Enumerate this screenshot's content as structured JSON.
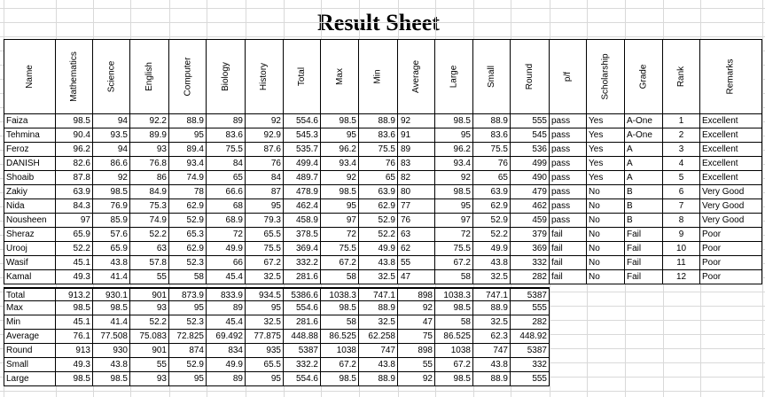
{
  "title": "Result Sheet",
  "headers": [
    "Name",
    "Mathematics",
    "Science",
    "English",
    "Computer",
    "Biology",
    "History",
    "Total",
    "Max",
    "Min",
    "Average",
    "Large",
    "Small",
    "Round",
    "p/f",
    "Scholarship",
    "Grade",
    "Rank",
    "Remarks"
  ],
  "students": [
    [
      "Faiza",
      "98.5",
      "94",
      "92.2",
      "88.9",
      "89",
      "92",
      "554.6",
      "98.5",
      "88.9",
      "92",
      "98.5",
      "88.9",
      "555",
      "pass",
      "Yes",
      "A-One",
      "1",
      "Excellent"
    ],
    [
      "Tehmina",
      "90.4",
      "93.5",
      "89.9",
      "95",
      "83.6",
      "92.9",
      "545.3",
      "95",
      "83.6",
      "91",
      "95",
      "83.6",
      "545",
      "pass",
      "Yes",
      "A-One",
      "2",
      "Excellent"
    ],
    [
      "Feroz",
      "96.2",
      "94",
      "93",
      "89.4",
      "75.5",
      "87.6",
      "535.7",
      "96.2",
      "75.5",
      "89",
      "96.2",
      "75.5",
      "536",
      "pass",
      "Yes",
      "A",
      "3",
      "Excellent"
    ],
    [
      "DANISH",
      "82.6",
      "86.6",
      "76.8",
      "93.4",
      "84",
      "76",
      "499.4",
      "93.4",
      "76",
      "83",
      "93.4",
      "76",
      "499",
      "pass",
      "Yes",
      "A",
      "4",
      "Excellent"
    ],
    [
      "Shoaib",
      "87.8",
      "92",
      "86",
      "74.9",
      "65",
      "84",
      "489.7",
      "92",
      "65",
      "82",
      "92",
      "65",
      "490",
      "pass",
      "Yes",
      "A",
      "5",
      "Excellent"
    ],
    [
      "Zakiy",
      "63.9",
      "98.5",
      "84.9",
      "78",
      "66.6",
      "87",
      "478.9",
      "98.5",
      "63.9",
      "80",
      "98.5",
      "63.9",
      "479",
      "pass",
      "No",
      "B",
      "6",
      "Very Good"
    ],
    [
      "Nida",
      "84.3",
      "76.9",
      "75.3",
      "62.9",
      "68",
      "95",
      "462.4",
      "95",
      "62.9",
      "77",
      "95",
      "62.9",
      "462",
      "pass",
      "No",
      "B",
      "7",
      "Very Good"
    ],
    [
      "Nousheen",
      "97",
      "85.9",
      "74.9",
      "52.9",
      "68.9",
      "79.3",
      "458.9",
      "97",
      "52.9",
      "76",
      "97",
      "52.9",
      "459",
      "pass",
      "No",
      "B",
      "8",
      "Very Good"
    ],
    [
      "Sheraz",
      "65.9",
      "57.6",
      "52.2",
      "65.3",
      "72",
      "65.5",
      "378.5",
      "72",
      "52.2",
      "63",
      "72",
      "52.2",
      "379",
      "fail",
      "No",
      "Fail",
      "9",
      "Poor"
    ],
    [
      "Urooj",
      "52.2",
      "65.9",
      "63",
      "62.9",
      "49.9",
      "75.5",
      "369.4",
      "75.5",
      "49.9",
      "62",
      "75.5",
      "49.9",
      "369",
      "fail",
      "No",
      "Fail",
      "10",
      "Poor"
    ],
    [
      "Wasif",
      "45.1",
      "43.8",
      "57.8",
      "52.3",
      "66",
      "67.2",
      "332.2",
      "67.2",
      "43.8",
      "55",
      "67.2",
      "43.8",
      "332",
      "fail",
      "No",
      "Fail",
      "11",
      "Poor"
    ],
    [
      "Kamal",
      "49.3",
      "41.4",
      "55",
      "58",
      "45.4",
      "32.5",
      "281.6",
      "58",
      "32.5",
      "47",
      "58",
      "32.5",
      "282",
      "fail",
      "No",
      "Fail",
      "12",
      "Poor"
    ]
  ],
  "summary": [
    [
      "Total",
      "913.2",
      "930.1",
      "901",
      "873.9",
      "833.9",
      "934.5",
      "5386.6",
      "1038.3",
      "747.1",
      "898",
      "1038.3",
      "747.1",
      "5387"
    ],
    [
      "Max",
      "98.5",
      "98.5",
      "93",
      "95",
      "89",
      "95",
      "554.6",
      "98.5",
      "88.9",
      "92",
      "98.5",
      "88.9",
      "555"
    ],
    [
      "Min",
      "45.1",
      "41.4",
      "52.2",
      "52.3",
      "45.4",
      "32.5",
      "281.6",
      "58",
      "32.5",
      "47",
      "58",
      "32.5",
      "282"
    ],
    [
      "Average",
      "76.1",
      "77.508",
      "75.083",
      "72.825",
      "69.492",
      "77.875",
      "448.88",
      "86.525",
      "62.258",
      "75",
      "86.525",
      "62.3",
      "448.92"
    ],
    [
      "Round",
      "913",
      "930",
      "901",
      "874",
      "834",
      "935",
      "5387",
      "1038",
      "747",
      "898",
      "1038",
      "747",
      "5387"
    ],
    [
      "Small",
      "49.3",
      "43.8",
      "55",
      "52.9",
      "49.9",
      "65.5",
      "332.2",
      "67.2",
      "43.8",
      "55",
      "67.2",
      "43.8",
      "332"
    ],
    [
      "Large",
      "98.5",
      "98.5",
      "93",
      "95",
      "89",
      "95",
      "554.6",
      "98.5",
      "88.9",
      "92",
      "98.5",
      "88.9",
      "555"
    ]
  ]
}
